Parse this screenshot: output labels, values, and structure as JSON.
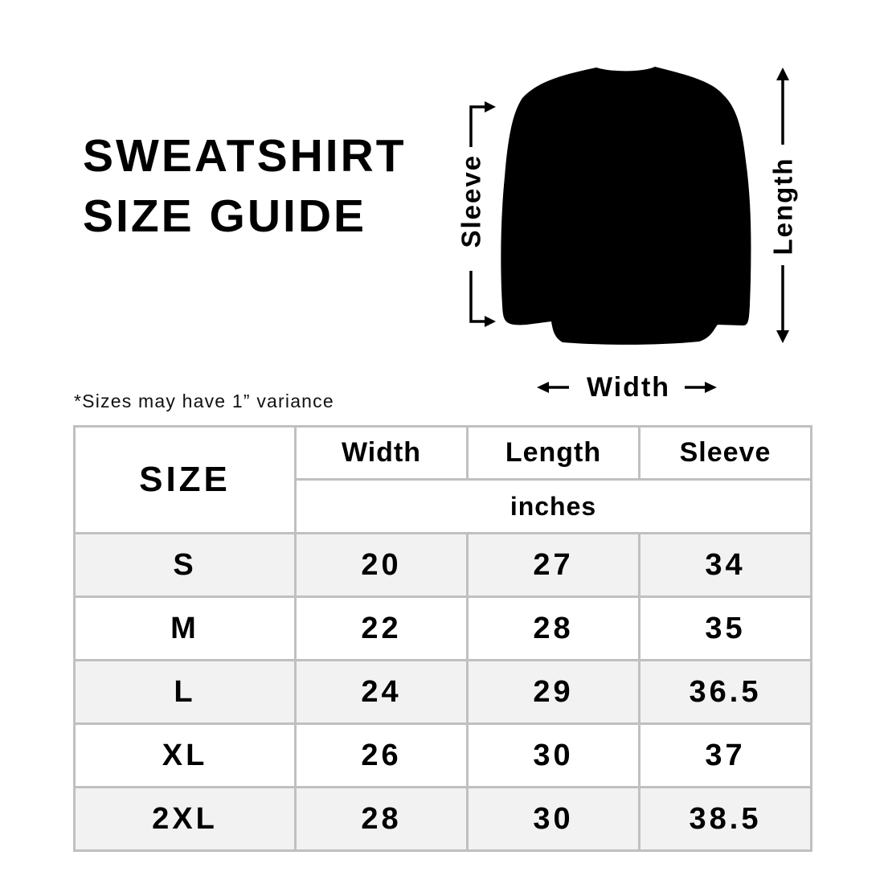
{
  "title": {
    "line1": "SWEATSHIRT",
    "line2": "SIZE GUIDE"
  },
  "diagram": {
    "sleeve_label": "Sleeve",
    "length_label": "Length",
    "width_label": "Width",
    "garment_color": "#000000"
  },
  "note": "*Sizes may have 1” variance",
  "table": {
    "size_header": "SIZE",
    "columns": [
      "Width",
      "Length",
      "Sleeve"
    ],
    "unit": "inches",
    "rows": [
      {
        "size": "S",
        "width": "20",
        "length": "27",
        "sleeve": "34"
      },
      {
        "size": "M",
        "width": "22",
        "length": "28",
        "sleeve": "35"
      },
      {
        "size": "L",
        "width": "24",
        "length": "29",
        "sleeve": "36.5"
      },
      {
        "size": "XL",
        "width": "26",
        "length": "30",
        "sleeve": "37"
      },
      {
        "size": "2XL",
        "width": "28",
        "length": "30",
        "sleeve": "38.5"
      }
    ],
    "border_color": "#c0c0c0",
    "stripe_color": "#f2f2f2"
  }
}
